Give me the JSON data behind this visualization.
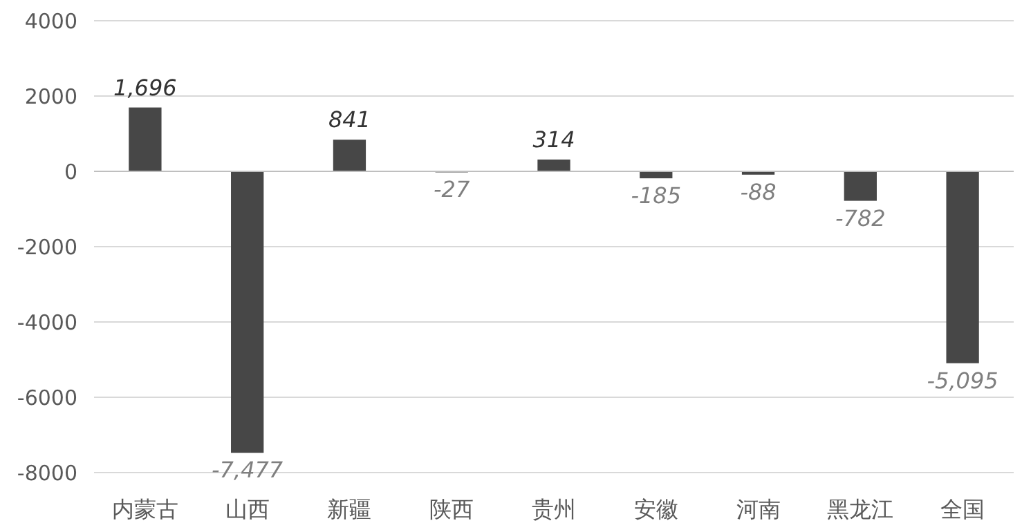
{
  "chart_data": {
    "type": "bar",
    "categories": [
      "内蒙古",
      "山西",
      "新疆",
      "陕西",
      "贵州",
      "安徽",
      "河南",
      "黑龙江",
      "全国"
    ],
    "values": [
      1696,
      -7477,
      841,
      -27,
      314,
      -185,
      -88,
      -782,
      -5095
    ],
    "value_labels": [
      "1,696",
      "-7,477",
      "841",
      "-27",
      "314",
      "-185",
      "-88",
      "-782",
      "-5,095"
    ],
    "color": "#474747",
    "ylim": [
      -8000,
      4000
    ],
    "yticks": [
      -8000,
      -6000,
      -4000,
      -2000,
      0,
      2000,
      4000
    ],
    "grid": "y"
  }
}
